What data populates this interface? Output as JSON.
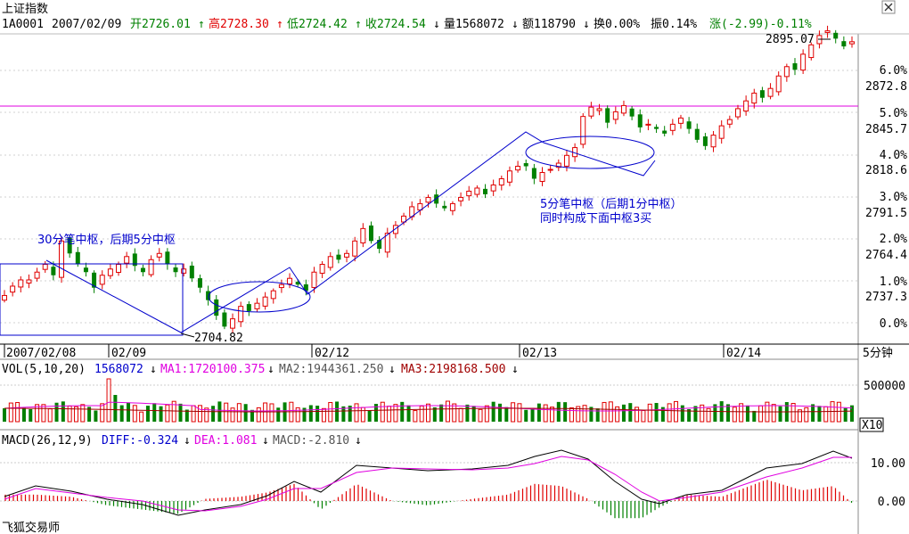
{
  "header": {
    "name": "上证指数",
    "code": "1A0001",
    "date": "2007/02/09",
    "open": "开2726.01",
    "high": "高2728.30",
    "low": "低2724.42",
    "close": "收2724.54",
    "volume": "量1568072",
    "amount": "额118790",
    "turnover": "换0.00%",
    "amplitude": "振0.14%",
    "change": "涨(-2.99)-0.11%"
  },
  "price_axis": {
    "values": [
      "2872.8",
      "2845.7",
      "2818.6",
      "2791.5",
      "2764.4",
      "2737.3"
    ],
    "percents": [
      "6.0%",
      "5.0%",
      "4.0%",
      "3.0%",
      "2.0%",
      "1.0%",
      "0.0%"
    ]
  },
  "time_axis": {
    "labels": [
      "2007/02/08",
      "02/09",
      "02/12",
      "02/13",
      "02/14"
    ],
    "period": "5分钟"
  },
  "price_marks": {
    "max": "2895.07",
    "min": "2704.82"
  },
  "annotations": {
    "left": "30分笔中枢，后期5分中枢",
    "right_1": "5分笔中枢（后期1分中枢）",
    "right_2": "同时构成下面中枢3买"
  },
  "vol": {
    "title": "VOL(5,10,20)",
    "value": "1568072",
    "ma1": "MA1:1720100.375",
    "ma2": "MA2:1944361.250",
    "ma3": "MA3:2198168.500",
    "axis": "500000",
    "unit": "X10"
  },
  "macd": {
    "title": "MACD(26,12,9)",
    "diff": "DIFF:-0.324",
    "dea": "DEA:1.081",
    "macd": "MACD:-2.810",
    "axis_top": "10.00",
    "axis_zero": "0.00"
  },
  "footer": {
    "app": "飞狐交易师"
  },
  "colors": {
    "up": "#e00000",
    "down": "#008000",
    "line": "#0000cc",
    "magenta": "#e000e0"
  },
  "chart_data": {
    "type": "candlestick",
    "base_close": 2727.53,
    "close_series": [
      2725,
      2731,
      2735,
      2735,
      2740,
      2745,
      2738,
      2760,
      2752,
      2745,
      2740,
      2730,
      2738,
      2742,
      2745,
      2750,
      2744,
      2740,
      2748,
      2752,
      2745,
      2740,
      2742,
      2736,
      2730,
      2722,
      2712,
      2705,
      2710,
      2718,
      2715,
      2720,
      2724,
      2728,
      2732,
      2736,
      2732,
      2728,
      2740,
      2745,
      2750,
      2748,
      2752,
      2760,
      2768,
      2760,
      2755,
      2765,
      2770,
      2776,
      2782,
      2784,
      2788,
      2784,
      2781,
      2784,
      2788,
      2792,
      2794,
      2790,
      2796,
      2800,
      2805,
      2808,
      2808,
      2800,
      2804,
      2806,
      2810,
      2815,
      2820,
      2840,
      2846,
      2845,
      2836,
      2843,
      2847,
      2840,
      2833,
      2835,
      2832,
      2829,
      2835,
      2839,
      2832,
      2825,
      2821,
      2828,
      2834,
      2838,
      2845,
      2850,
      2855,
      2852,
      2858,
      2866,
      2872,
      2870,
      2880,
      2886,
      2892,
      2895,
      2890,
      2885,
      2888
    ]
  }
}
